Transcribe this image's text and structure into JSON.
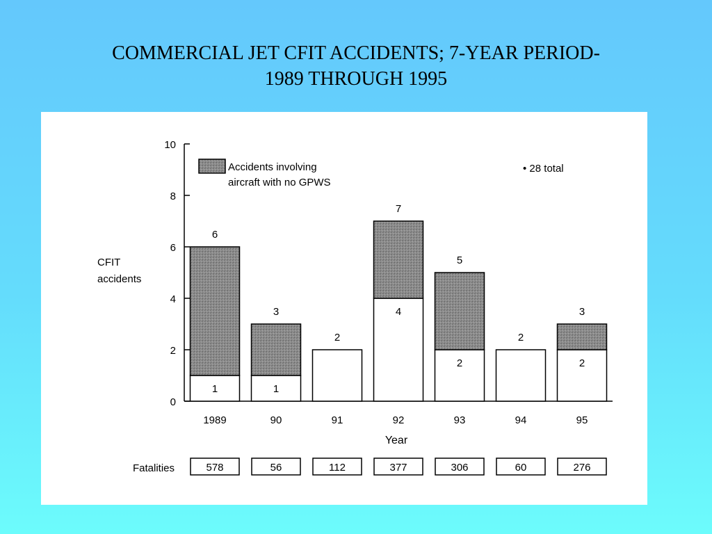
{
  "slide": {
    "title_line1": "COMMERCIAL JET CFIT ACCIDENTS; 7-YEAR PERIOD-",
    "title_line2": "1989 THROUGH 1995"
  },
  "colors": {
    "background_top": "#64c8fc",
    "background_bottom": "#6cfcfc",
    "panel": "#ffffff",
    "no_gpws_fill": "#8a8a8a",
    "other_fill": "#ffffff"
  },
  "chart_data": {
    "type": "bar",
    "stacked": true,
    "ylabel_line1": "CFIT",
    "ylabel_line2": "accidents",
    "xlabel": "Year",
    "ylim": [
      0,
      10
    ],
    "yticks": [
      "0",
      "2",
      "4",
      "6",
      "8",
      "10"
    ],
    "categories": [
      "1989",
      "90",
      "91",
      "92",
      "93",
      "94",
      "95"
    ],
    "legend": {
      "line1": "Accidents involving",
      "line2": "aircraft with no GPWS",
      "placement": "top-left"
    },
    "note": "• 28 total",
    "series": [
      {
        "name": "",
        "values": [
          1,
          1,
          2,
          4,
          2,
          2,
          2
        ]
      },
      {
        "name": "Accidents involving aircraft with no GPWS",
        "values": [
          5,
          2,
          0,
          3,
          3,
          0,
          1
        ]
      }
    ],
    "totals": [
      6,
      3,
      2,
      7,
      5,
      2,
      3
    ],
    "inner_labels": [
      "1",
      "1",
      "",
      "4",
      "2",
      "",
      "2"
    ],
    "total_labels": [
      "6",
      "3",
      "2",
      "7",
      "5",
      "2",
      "3"
    ],
    "fatalities_label": "Fatalities",
    "fatalities": [
      "578",
      "56",
      "112",
      "377",
      "306",
      "60",
      "276"
    ]
  }
}
